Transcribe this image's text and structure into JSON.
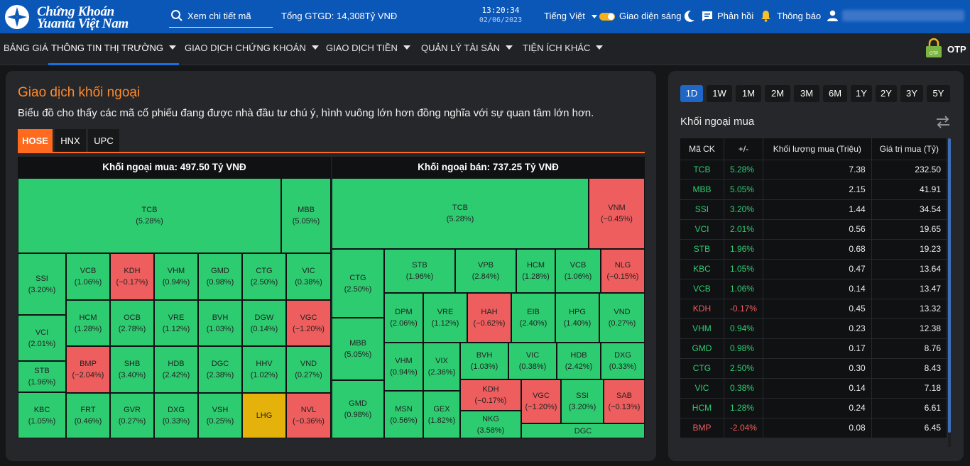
{
  "header": {
    "logo_line1": "Chứng Khoán",
    "logo_line2": "Yuanta Việt Nam",
    "search_placeholder": "Xem chi tiết mã",
    "total_gtgd": "Tổng GTGD: 14,308Tỷ VNĐ",
    "time": "13:20:34",
    "date": "02/06/2023",
    "language": "Tiếng Việt",
    "theme_label": "Giao diện sáng",
    "feedback_label": "Phản hồi",
    "notify_label": "Thông báo",
    "brand_color": "#0b57b8"
  },
  "menu": {
    "items": [
      {
        "label": "BẢNG GIÁ"
      },
      {
        "label": "THÔNG TIN THỊ TRƯỜNG"
      },
      {
        "label": "GIAO DỊCH CHỨNG KHOÁN"
      },
      {
        "label": "GIAO DỊCH TIỀN"
      },
      {
        "label": "QUẢN LÝ TÀI SẢN"
      },
      {
        "label": "TIỆN ÍCH KHÁC"
      }
    ],
    "active": "THÔNG TIN THỊ TRƯỜNG",
    "otp_label": "OTP",
    "otp_icon_text": "OTP"
  },
  "main": {
    "title": "Giao dịch khối ngoại",
    "description": "Biểu đồ cho thấy các mã cổ phiếu đang được nhà đầu tư chú ý, hình vuông lớn hơn đồng nghĩa với sự quan tâm lớn hơn.",
    "exchange_tabs": [
      "HOSE",
      "HNX",
      "UPC"
    ],
    "active_exchange": "HOSE",
    "buy_title": "Khối ngoại mua:  497.50 Tỷ VNĐ",
    "sell_title": "Khối ngoại bán:  737.25 Tỷ VNĐ",
    "up_color": "#2ecc71",
    "down_color": "#ef5e5e",
    "ref_color": "#e5b10b"
  },
  "treemap_buy": [
    {
      "sym": "TCB",
      "chg": "(5.28%)"
    },
    {
      "sym": "MBB",
      "chg": "(5.05%)"
    },
    {
      "sym": "SSI",
      "chg": "(3.20%)"
    },
    {
      "sym": "VCI",
      "chg": "(2.01%)"
    },
    {
      "sym": "STB",
      "chg": "(1.96%)"
    },
    {
      "sym": "KBC",
      "chg": "(1.05%)"
    },
    {
      "sym": "VCB",
      "chg": "(1.06%)"
    },
    {
      "sym": "KDH",
      "chg": "(−0.17%)"
    },
    {
      "sym": "VHM",
      "chg": "(0.94%)"
    },
    {
      "sym": "GMD",
      "chg": "(0.98%)"
    },
    {
      "sym": "CTG",
      "chg": "(2.50%)"
    },
    {
      "sym": "VIC",
      "chg": "(0.38%)"
    },
    {
      "sym": "HCM",
      "chg": "(1.28%)"
    },
    {
      "sym": "OCB",
      "chg": "(2.78%)"
    },
    {
      "sym": "VRE",
      "chg": "(1.12%)"
    },
    {
      "sym": "BVH",
      "chg": "(1.03%)"
    },
    {
      "sym": "DGW",
      "chg": "(0.14%)"
    },
    {
      "sym": "VGC",
      "chg": "(−1.20%)"
    },
    {
      "sym": "BMP",
      "chg": "(−2.04%)"
    },
    {
      "sym": "SHB",
      "chg": "(3.40%)"
    },
    {
      "sym": "HDB",
      "chg": "(2.42%)"
    },
    {
      "sym": "DGC",
      "chg": "(2.38%)"
    },
    {
      "sym": "HHV",
      "chg": "(1.02%)"
    },
    {
      "sym": "VND",
      "chg": "(0.27%)"
    },
    {
      "sym": "FRT",
      "chg": "(0.46%)"
    },
    {
      "sym": "GVR",
      "chg": "(0.27%)"
    },
    {
      "sym": "DXG",
      "chg": "(0.33%)"
    },
    {
      "sym": "VSH",
      "chg": "(0.25%)"
    },
    {
      "sym": "LHG",
      "chg": ""
    },
    {
      "sym": "NVL",
      "chg": "(−0.36%)"
    }
  ],
  "treemap_sell": [
    {
      "sym": "TCB",
      "chg": "(5.28%)"
    },
    {
      "sym": "VNM",
      "chg": "(−0.45%)"
    },
    {
      "sym": "CTG",
      "chg": "(2.50%)"
    },
    {
      "sym": "MBB",
      "chg": "(5.05%)"
    },
    {
      "sym": "GMD",
      "chg": "(0.98%)"
    },
    {
      "sym": "STB",
      "chg": "(1.96%)"
    },
    {
      "sym": "VPB",
      "chg": "(2.84%)"
    },
    {
      "sym": "HCM",
      "chg": "(1.28%)"
    },
    {
      "sym": "VCB",
      "chg": "(1.06%)"
    },
    {
      "sym": "NLG",
      "chg": "(−0.15%)"
    },
    {
      "sym": "DPM",
      "chg": "(2.06%)"
    },
    {
      "sym": "VRE",
      "chg": "(1.12%)"
    },
    {
      "sym": "HAH",
      "chg": "(−0.62%)"
    },
    {
      "sym": "EIB",
      "chg": "(2.40%)"
    },
    {
      "sym": "HPG",
      "chg": "(1.40%)"
    },
    {
      "sym": "VND",
      "chg": "(0.27%)"
    },
    {
      "sym": "VHM",
      "chg": "(0.94%)"
    },
    {
      "sym": "VIX",
      "chg": "(2.36%)"
    },
    {
      "sym": "BVH",
      "chg": "(1.03%)"
    },
    {
      "sym": "VIC",
      "chg": "(0.38%)"
    },
    {
      "sym": "HDB",
      "chg": "(2.42%)"
    },
    {
      "sym": "DXG",
      "chg": "(0.33%)"
    },
    {
      "sym": "MSN",
      "chg": "(0.56%)"
    },
    {
      "sym": "GEX",
      "chg": "(1.82%)"
    },
    {
      "sym": "KDH",
      "chg": "(−0.17%)"
    },
    {
      "sym": "VGC",
      "chg": "(−1.20%)"
    },
    {
      "sym": "SSI",
      "chg": "(3.20%)"
    },
    {
      "sym": "SAB",
      "chg": "(−0.13%)"
    },
    {
      "sym": "NKG",
      "chg": "(3.58%)"
    },
    {
      "sym": "DGC",
      "chg": ""
    }
  ],
  "side": {
    "periods": [
      "1D",
      "1W",
      "1M",
      "2M",
      "3M",
      "6M",
      "1Y",
      "2Y",
      "3Y",
      "5Y"
    ],
    "active_period": "1D",
    "title": "Khối ngoại mua",
    "columns": [
      "Mã CK",
      "+/-",
      "Khối lượng mua (Triệu)",
      "Giá trị mua (Tỷ)"
    ],
    "rows": [
      {
        "sym": "TCB",
        "chg": "5.28%",
        "vol": "7.38",
        "val": "232.50"
      },
      {
        "sym": "MBB",
        "chg": "5.05%",
        "vol": "2.15",
        "val": "41.91"
      },
      {
        "sym": "SSI",
        "chg": "3.20%",
        "vol": "1.44",
        "val": "34.54"
      },
      {
        "sym": "VCI",
        "chg": "2.01%",
        "vol": "0.56",
        "val": "19.65"
      },
      {
        "sym": "STB",
        "chg": "1.96%",
        "vol": "0.68",
        "val": "19.23"
      },
      {
        "sym": "KBC",
        "chg": "1.05%",
        "vol": "0.47",
        "val": "13.64"
      },
      {
        "sym": "VCB",
        "chg": "1.06%",
        "vol": "0.14",
        "val": "13.47"
      },
      {
        "sym": "KDH",
        "chg": "-0.17%",
        "vol": "0.45",
        "val": "13.32"
      },
      {
        "sym": "VHM",
        "chg": "0.94%",
        "vol": "0.23",
        "val": "12.38"
      },
      {
        "sym": "GMD",
        "chg": "0.98%",
        "vol": "0.17",
        "val": "8.76"
      },
      {
        "sym": "CTG",
        "chg": "2.50%",
        "vol": "0.30",
        "val": "8.43"
      },
      {
        "sym": "VIC",
        "chg": "0.38%",
        "vol": "0.14",
        "val": "7.18"
      },
      {
        "sym": "HCM",
        "chg": "1.28%",
        "vol": "0.24",
        "val": "6.61"
      },
      {
        "sym": "BMP",
        "chg": "-2.04%",
        "vol": "0.08",
        "val": "6.45"
      }
    ]
  }
}
